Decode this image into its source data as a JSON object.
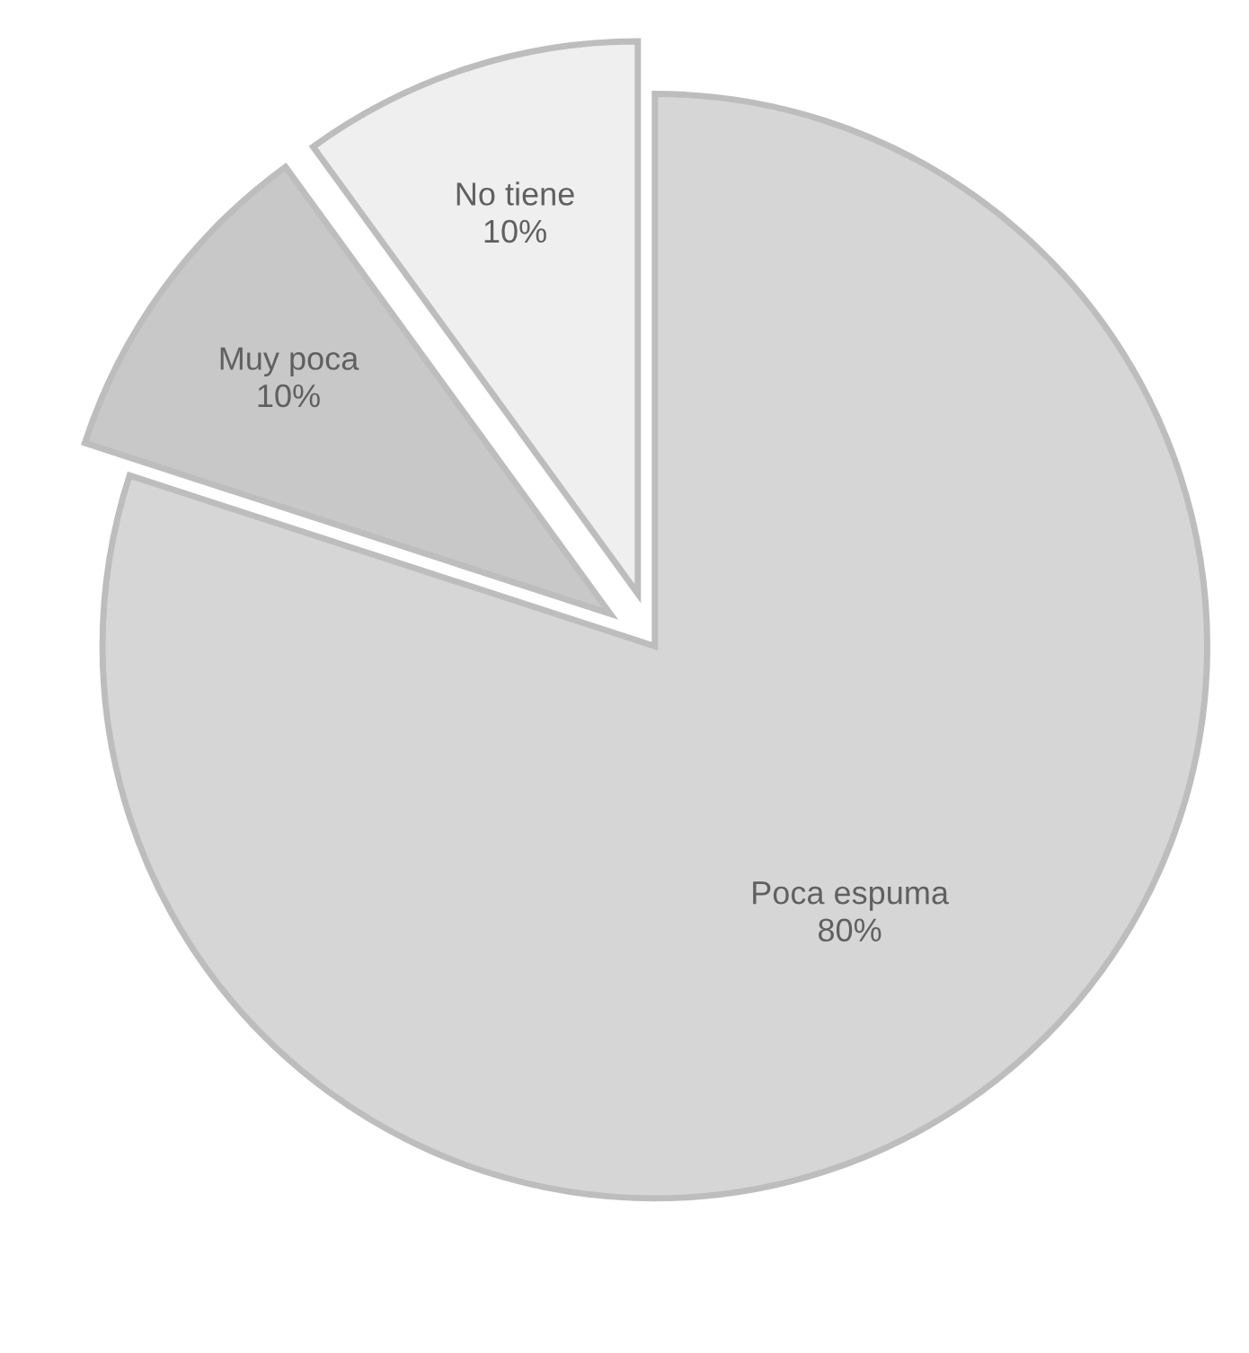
{
  "chart_data": {
    "type": "pie",
    "categories": [
      "Poca espuma",
      "No tiene",
      "Muy poca"
    ],
    "values": [
      80,
      10,
      10
    ],
    "colors": [
      "#d6d6d6",
      "#efefef",
      "#c8c8c8"
    ],
    "value_labels": [
      "80%",
      "10%",
      "10%"
    ],
    "legend": false
  }
}
